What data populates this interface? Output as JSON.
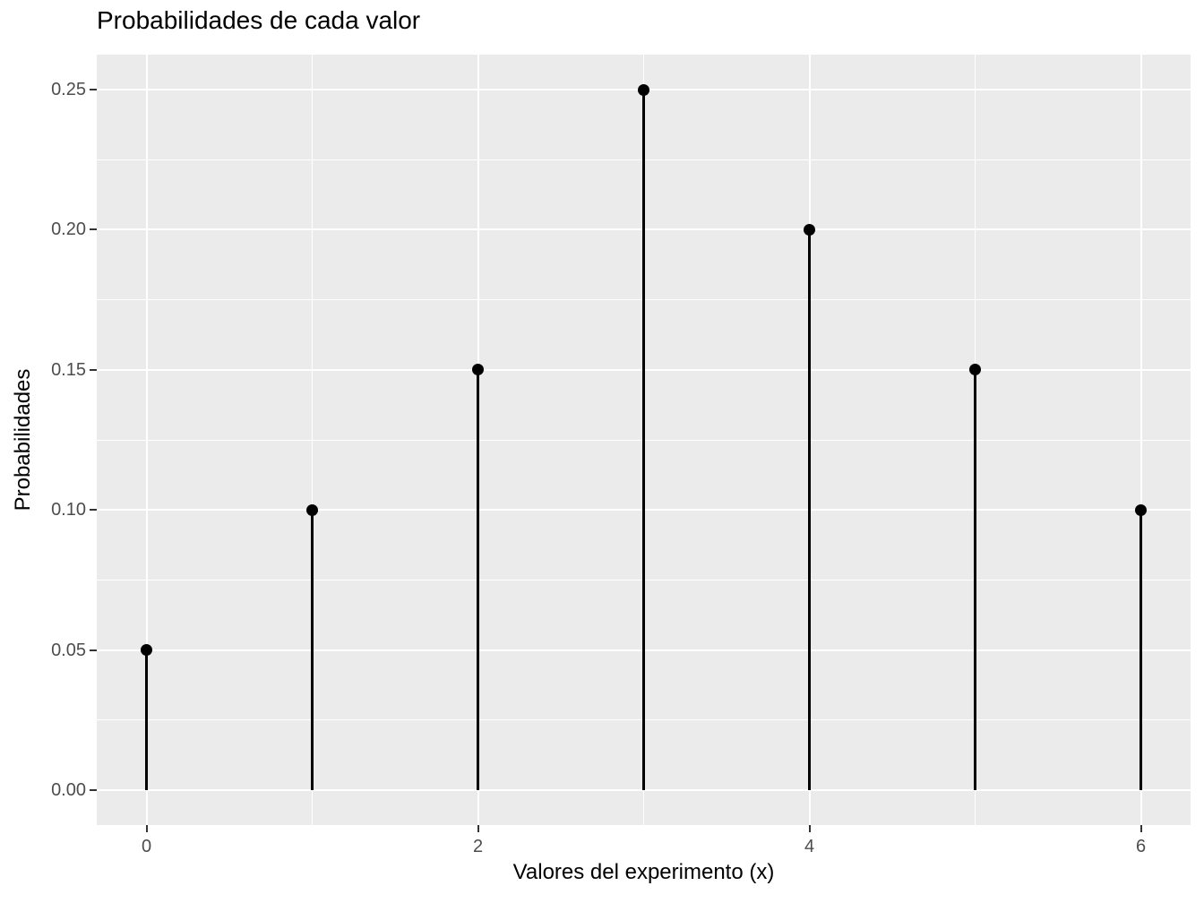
{
  "chart_data": {
    "type": "lollipop",
    "title": "Probabilidades de cada valor",
    "xlabel": "Valores del experimento (x)",
    "ylabel": "Probabilidades",
    "x": [
      0,
      1,
      2,
      3,
      4,
      5,
      6
    ],
    "values": [
      0.05,
      0.1,
      0.15,
      0.25,
      0.2,
      0.15,
      0.1
    ],
    "xlim": [
      -0.3,
      6.3
    ],
    "ylim": [
      -0.0125,
      0.2625
    ],
    "x_major_ticks": [
      0,
      2,
      4,
      6
    ],
    "x_tick_labels": [
      "0",
      "2",
      "4",
      "6"
    ],
    "x_minor_gridlines": [
      1,
      3,
      5
    ],
    "y_major_ticks": [
      0.0,
      0.05,
      0.1,
      0.15,
      0.2,
      0.25
    ],
    "y_tick_labels": [
      "0.00",
      "0.05",
      "0.10",
      "0.15",
      "0.20",
      "0.25"
    ],
    "y_minor_gridlines": [
      0.025,
      0.075,
      0.125,
      0.175,
      0.225
    ],
    "grid": true,
    "legend": "none",
    "colors": {
      "figure_background": "#FFFFFF",
      "panel_background": "#EBEBEB",
      "grid_major": "#FFFFFF",
      "grid_minor": "#FFFFFF",
      "stem": "#000000",
      "point": "#000000",
      "tick_mark": "#333333",
      "tick_label": "#4D4D4D",
      "text": "#000000"
    }
  }
}
